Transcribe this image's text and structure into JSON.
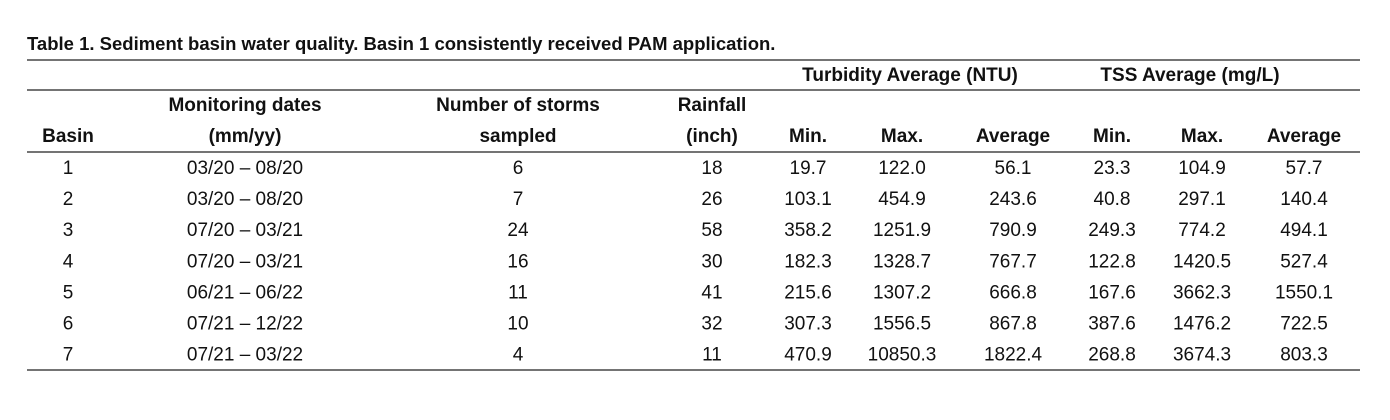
{
  "title": "Table 1. Sediment basin water quality. Basin 1 consistently received PAM application.",
  "table": {
    "group_headers": [
      "Turbidity Average (NTU)",
      "TSS Average (mg/L)"
    ],
    "headers": [
      [
        "Basin"
      ],
      [
        "Monitoring dates",
        "(mm/yy)"
      ],
      [
        "Number of storms",
        "sampled"
      ],
      [
        "Rainfall",
        "(inch)"
      ],
      [
        "Min."
      ],
      [
        "Max."
      ],
      [
        "Average"
      ],
      [
        "Min."
      ],
      [
        "Max."
      ],
      [
        "Average"
      ]
    ],
    "rows": [
      [
        "1",
        "03/20 – 08/20",
        "6",
        "18",
        "19.7",
        "122.0",
        "56.1",
        "23.3",
        "104.9",
        "57.7"
      ],
      [
        "2",
        "03/20 – 08/20",
        "7",
        "26",
        "103.1",
        "454.9",
        "243.6",
        "40.8",
        "297.1",
        "140.4"
      ],
      [
        "3",
        "07/20 – 03/21",
        "24",
        "58",
        "358.2",
        "1251.9",
        "790.9",
        "249.3",
        "774.2",
        "494.1"
      ],
      [
        "4",
        "07/20 – 03/21",
        "16",
        "30",
        "182.3",
        "1328.7",
        "767.7",
        "122.8",
        "1420.5",
        "527.4"
      ],
      [
        "5",
        "06/21 – 06/22",
        "11",
        "41",
        "215.6",
        "1307.2",
        "666.8",
        "167.6",
        "3662.3",
        "1550.1"
      ],
      [
        "6",
        "07/21 – 12/22",
        "10",
        "32",
        "307.3",
        "1556.5",
        "867.8",
        "387.6",
        "1476.2",
        "722.5"
      ],
      [
        "7",
        "07/21 – 03/22",
        "4",
        "11",
        "470.9",
        "10850.3",
        "1822.4",
        "268.8",
        "3674.3",
        "803.3"
      ]
    ]
  }
}
